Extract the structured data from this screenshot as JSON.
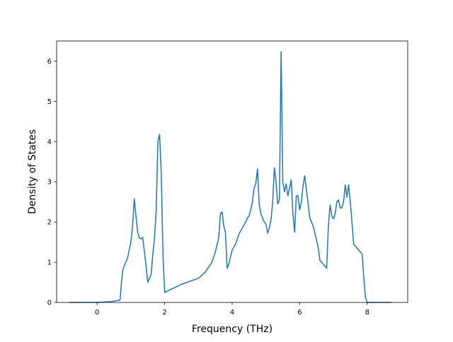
{
  "chart_data": {
    "type": "line",
    "title": "",
    "xlabel": "Frequency (THz)",
    "ylabel": "Density of States",
    "xlim": [
      -1.2,
      9.2
    ],
    "ylim": [
      0,
      6.5
    ],
    "x_ticks": [
      0,
      2,
      4,
      6,
      8
    ],
    "y_ticks": [
      0,
      1,
      2,
      3,
      4,
      5,
      6
    ],
    "x_tick_labels": [
      "0",
      "2",
      "4",
      "6",
      "8"
    ],
    "y_tick_labels": [
      "0",
      "1",
      "2",
      "3",
      "4",
      "5",
      "6"
    ],
    "grid": false,
    "legend": "none",
    "series": [
      {
        "color": "#1f77b4",
        "x": [
          -0.8,
          0.0,
          0.4,
          0.68,
          0.72,
          0.76,
          0.8,
          0.9,
          1.0,
          1.05,
          1.1,
          1.15,
          1.2,
          1.25,
          1.3,
          1.35,
          1.45,
          1.5,
          1.55,
          1.6,
          1.65,
          1.7,
          1.75,
          1.8,
          1.85,
          1.9,
          1.95,
          2.0,
          2.5,
          3.0,
          3.2,
          3.4,
          3.5,
          3.6,
          3.65,
          3.7,
          3.75,
          3.8,
          3.85,
          3.9,
          4.0,
          4.1,
          4.2,
          4.3,
          4.4,
          4.45,
          4.5,
          4.55,
          4.6,
          4.65,
          4.7,
          4.75,
          4.8,
          4.85,
          4.9,
          4.95,
          5.0,
          5.05,
          5.1,
          5.15,
          5.2,
          5.25,
          5.3,
          5.35,
          5.4,
          5.45,
          5.5,
          5.55,
          5.6,
          5.65,
          5.7,
          5.75,
          5.8,
          5.85,
          5.9,
          5.95,
          6.0,
          6.05,
          6.1,
          6.15,
          6.2,
          6.3,
          6.4,
          6.5,
          6.55,
          6.6,
          6.8,
          6.85,
          6.9,
          6.95,
          7.0,
          7.05,
          7.1,
          7.15,
          7.2,
          7.25,
          7.3,
          7.35,
          7.4,
          7.45,
          7.5,
          7.6,
          7.8,
          7.85,
          7.9,
          7.95,
          8.0,
          8.5,
          8.7
        ],
        "y": [
          0.0,
          0.0,
          0.02,
          0.06,
          0.5,
          0.8,
          0.9,
          1.1,
          1.5,
          1.9,
          2.58,
          2.15,
          1.75,
          1.6,
          1.58,
          1.62,
          0.9,
          0.5,
          0.6,
          0.7,
          1.2,
          1.6,
          2.3,
          4.0,
          4.18,
          3.2,
          1.2,
          0.25,
          0.45,
          0.6,
          0.75,
          1.0,
          1.25,
          1.6,
          2.2,
          2.25,
          1.9,
          1.75,
          0.85,
          0.95,
          1.3,
          1.45,
          1.7,
          1.85,
          2.0,
          2.1,
          2.15,
          2.3,
          2.5,
          2.85,
          2.95,
          3.32,
          2.45,
          2.2,
          2.1,
          2.0,
          1.95,
          1.72,
          1.85,
          2.05,
          2.5,
          3.35,
          3.0,
          2.45,
          2.55,
          6.23,
          3.0,
          2.75,
          2.95,
          2.65,
          2.85,
          3.05,
          2.2,
          1.75,
          2.65,
          2.65,
          2.3,
          2.5,
          2.9,
          3.15,
          2.8,
          2.1,
          1.9,
          1.55,
          1.35,
          1.05,
          0.85,
          1.9,
          2.42,
          2.15,
          2.08,
          2.2,
          2.5,
          2.55,
          2.35,
          2.35,
          2.5,
          2.92,
          2.62,
          2.92,
          2.5,
          1.45,
          1.25,
          1.2,
          0.6,
          0.12,
          0.0,
          0.0,
          0.0
        ]
      }
    ]
  }
}
